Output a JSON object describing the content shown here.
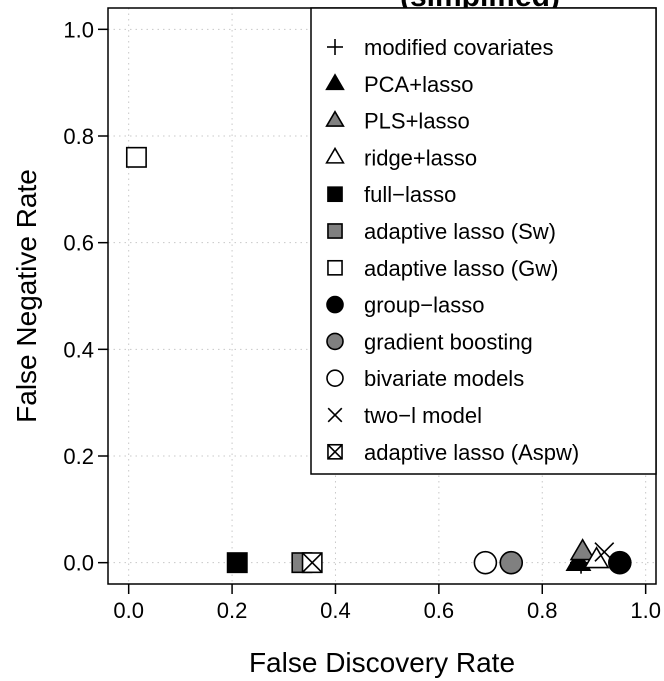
{
  "chart_data": {
    "type": "scatter",
    "title": "(simplified)",
    "xlabel": "False Discovery Rate",
    "ylabel": "False Negative Rate",
    "xlim": [
      -0.04,
      1.02
    ],
    "ylim": [
      -0.04,
      1.04
    ],
    "xticks": [
      "0.0",
      "0.2",
      "0.4",
      "0.6",
      "0.8",
      "1.0"
    ],
    "yticks": [
      "0.0",
      "0.2",
      "0.4",
      "0.6",
      "0.8",
      "1.0"
    ],
    "grid": true,
    "legend_position": "top-right",
    "series": [
      {
        "name": "modified covariates",
        "marker": "plus",
        "x": 0.875,
        "y": 0.0
      },
      {
        "name": "PCA+lasso",
        "marker": "triangle-filled",
        "x": 0.87,
        "y": 0.0
      },
      {
        "name": "PLS+lasso",
        "marker": "triangle-gray",
        "x": 0.878,
        "y": 0.02
      },
      {
        "name": "ridge+lasso",
        "marker": "triangle-open",
        "x": 0.905,
        "y": 0.005
      },
      {
        "name": "full−lasso",
        "marker": "square-filled",
        "x": 0.21,
        "y": 0.0
      },
      {
        "name": "adaptive lasso (Sw)",
        "marker": "square-gray",
        "x": 0.335,
        "y": 0.0
      },
      {
        "name": "adaptive lasso (Gw)",
        "marker": "square-open",
        "x": 0.015,
        "y": 0.76
      },
      {
        "name": "group−lasso",
        "marker": "circle-filled",
        "x": 0.95,
        "y": 0.0
      },
      {
        "name": "gradient boosting",
        "marker": "circle-gray",
        "x": 0.74,
        "y": 0.0
      },
      {
        "name": "bivariate models",
        "marker": "circle-open",
        "x": 0.69,
        "y": 0.0
      },
      {
        "name": "two−l model",
        "marker": "cross",
        "x": 0.92,
        "y": 0.02
      },
      {
        "name": "adaptive lasso (Aspw)",
        "marker": "square-cross",
        "x": 0.355,
        "y": 0.0
      }
    ]
  }
}
